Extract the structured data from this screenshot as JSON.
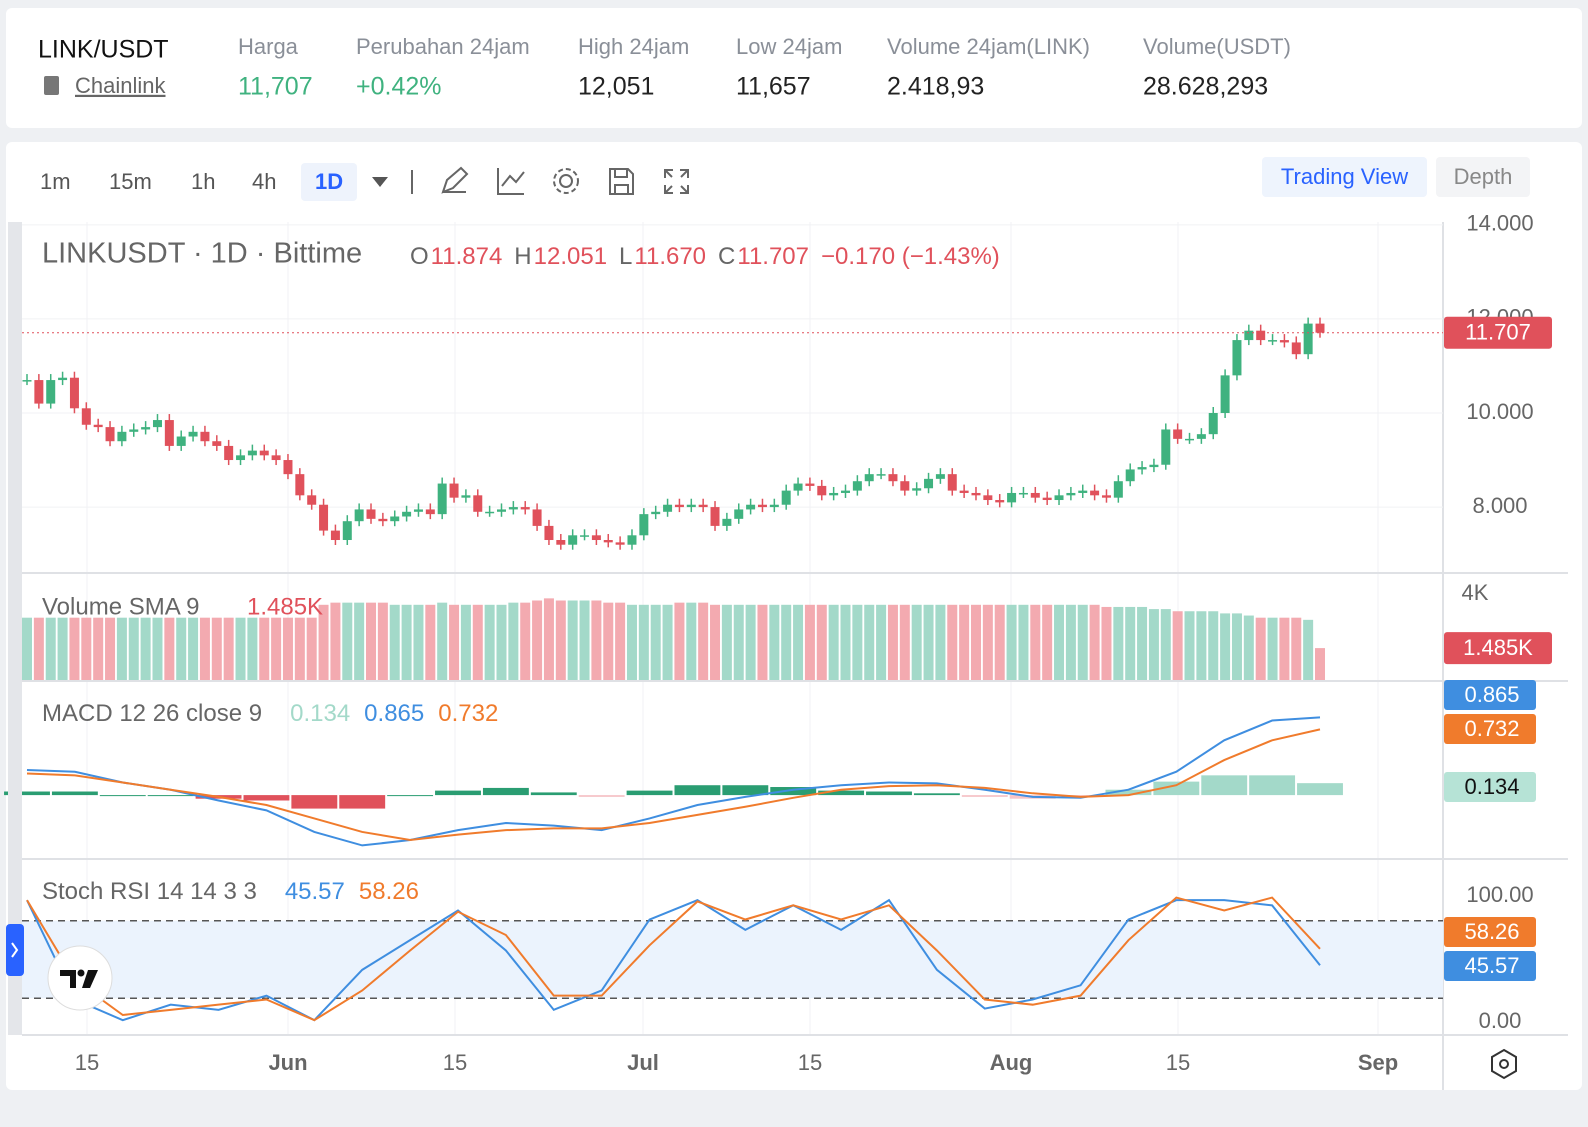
{
  "header": {
    "pair": "LINK/USDT",
    "name": "Chainlink",
    "stats": [
      {
        "label": "Harga",
        "value": "11,707"
      },
      {
        "label": "Perubahan 24jam",
        "value": "+0.42%"
      },
      {
        "label": "High 24jam",
        "value": "12,051"
      },
      {
        "label": "Low 24jam",
        "value": "11,657"
      },
      {
        "label": "Volume 24jam(LINK)",
        "value": "2.418,93"
      },
      {
        "label": "Volume(USDT)",
        "value": "28.628,293"
      }
    ]
  },
  "toolbar": {
    "intervals": [
      "1m",
      "15m",
      "1h",
      "4h",
      "1D"
    ],
    "active": "1D",
    "tabs": [
      "Trading View",
      "Depth"
    ],
    "active_tab": "Trading View"
  },
  "chart_data": {
    "type": "candlestick",
    "legend": {
      "symbol": "LINKUSDT · 1D · Bittime",
      "ohlc": [
        {
          "key": "O",
          "value": "11.874"
        },
        {
          "key": "H",
          "value": "12.051"
        },
        {
          "key": "L",
          "value": "11.670"
        },
        {
          "key": "C",
          "value": "11.707"
        }
      ],
      "change": "−0.170 (−1.43%)"
    },
    "price": {
      "up_color": "#3fb27f",
      "down_color": "#e0515b",
      "ylim": [
        6.62,
        14.06
      ],
      "yticks": [
        {
          "value": 14,
          "label": "14.000"
        },
        {
          "value": 12,
          "label": "12.000"
        },
        {
          "value": 10,
          "label": "10.000"
        },
        {
          "value": 8,
          "label": "8.000"
        }
      ],
      "last": {
        "value": 11.707,
        "label": "11.707"
      },
      "closes": [
        10.7,
        10.2,
        10.7,
        10.75,
        10.1,
        9.75,
        9.7,
        9.4,
        9.6,
        9.65,
        9.7,
        9.85,
        9.3,
        9.5,
        9.6,
        9.4,
        9.3,
        9.0,
        9.1,
        9.2,
        9.1,
        9.0,
        8.7,
        8.25,
        8.05,
        7.5,
        7.3,
        7.7,
        7.95,
        7.75,
        7.7,
        7.8,
        7.9,
        7.95,
        7.85,
        8.5,
        8.2,
        8.25,
        7.9,
        7.9,
        7.95,
        8.0,
        7.95,
        7.6,
        7.3,
        7.2,
        7.4,
        7.4,
        7.3,
        7.25,
        7.2,
        7.4,
        7.85,
        7.9,
        8.05,
        8.0,
        8.05,
        8.0,
        7.6,
        7.75,
        7.95,
        8.05,
        8.0,
        8.05,
        8.35,
        8.5,
        8.45,
        8.25,
        8.3,
        8.35,
        8.55,
        8.7,
        8.7,
        8.55,
        8.35,
        8.4,
        8.6,
        8.7,
        8.35,
        8.3,
        8.25,
        8.15,
        8.1,
        8.3,
        8.3,
        8.2,
        8.15,
        8.25,
        8.3,
        8.35,
        8.25,
        8.2,
        8.55,
        8.8,
        8.85,
        8.9,
        9.65,
        9.45,
        9.45,
        9.55,
        10.0,
        10.8,
        11.55,
        11.75,
        11.55,
        11.55,
        11.5,
        11.25,
        11.9,
        11.707
      ]
    },
    "volume": {
      "title": "Volume SMA 9",
      "ylim": [
        0,
        4.98
      ],
      "yticks": [
        {
          "value": 4,
          "label": "4K"
        }
      ],
      "last": {
        "value": 1.485,
        "label": "1.485K"
      },
      "values": [
        2.9,
        2.9,
        2.9,
        2.9,
        2.9,
        2.9,
        2.9,
        2.9,
        2.9,
        2.9,
        2.9,
        2.9,
        2.9,
        2.9,
        2.9,
        2.9,
        2.9,
        2.9,
        2.9,
        2.9,
        2.9,
        2.9,
        2.9,
        2.9,
        2.9,
        3.5,
        3.6,
        3.6,
        3.6,
        3.6,
        3.6,
        3.5,
        3.5,
        3.5,
        3.5,
        3.6,
        3.5,
        3.5,
        3.5,
        3.5,
        3.5,
        3.6,
        3.6,
        3.7,
        3.8,
        3.7,
        3.7,
        3.7,
        3.7,
        3.6,
        3.6,
        3.5,
        3.5,
        3.5,
        3.5,
        3.6,
        3.6,
        3.6,
        3.5,
        3.5,
        3.5,
        3.5,
        3.5,
        3.5,
        3.5,
        3.5,
        3.5,
        3.5,
        3.5,
        3.5,
        3.5,
        3.5,
        3.5,
        3.5,
        3.5,
        3.5,
        3.5,
        3.5,
        3.5,
        3.5,
        3.5,
        3.5,
        3.5,
        3.5,
        3.5,
        3.5,
        3.5,
        3.5,
        3.5,
        3.5,
        3.5,
        3.4,
        3.4,
        3.4,
        3.4,
        3.3,
        3.3,
        3.2,
        3.2,
        3.2,
        3.2,
        3.1,
        3.1,
        3.0,
        2.9,
        2.9,
        2.9,
        2.9,
        2.8,
        1.485
      ]
    },
    "macd": {
      "title": "MACD 12 26 close 9",
      "ylim": [
        -0.7,
        1.27
      ],
      "hist_label": "0.134",
      "macd_label": "0.865",
      "signal_label": "0.732",
      "macd_color": "#3f8ee0",
      "signal_color": "#f07b2c",
      "macd_values": [
        0.28,
        0.26,
        0.14,
        0.06,
        -0.06,
        -0.17,
        -0.41,
        -0.56,
        -0.5,
        -0.39,
        -0.31,
        -0.34,
        -0.39,
        -0.26,
        -0.11,
        -0.02,
        0.06,
        0.11,
        0.14,
        0.13,
        0.06,
        -0.02,
        -0.03,
        0.06,
        0.26,
        0.61,
        0.83,
        0.865
      ],
      "signal_values": [
        0.24,
        0.22,
        0.14,
        0.06,
        -0.02,
        -0.11,
        -0.26,
        -0.41,
        -0.5,
        -0.44,
        -0.39,
        -0.37,
        -0.37,
        -0.31,
        -0.22,
        -0.13,
        -0.03,
        0.06,
        0.1,
        0.11,
        0.08,
        0.02,
        -0.02,
        0,
        0.11,
        0.39,
        0.61,
        0.732
      ]
    },
    "stoch": {
      "title": "Stoch RSI 14 14 3 3",
      "ylim": [
        -8.5,
        127.9
      ],
      "bands": [
        20,
        80
      ],
      "yticks": [
        {
          "value": 100,
          "label": "100.00"
        },
        {
          "value": 0,
          "label": "0.00"
        }
      ],
      "k_label": "45.57",
      "d_label": "58.26",
      "k_color": "#3f8ee0",
      "d_color": "#f07b2c",
      "k_values": [
        96,
        19,
        3,
        15,
        11,
        22,
        3,
        42,
        65,
        88,
        57,
        11,
        26,
        81,
        96,
        73,
        92,
        73,
        96,
        42,
        12,
        19,
        30,
        81,
        96,
        96,
        92,
        45.57
      ],
      "d_values": [
        96,
        34,
        7,
        11,
        15,
        19,
        3,
        26,
        57,
        87,
        69,
        22,
        22,
        61,
        95,
        81,
        92,
        81,
        92,
        57,
        19,
        15,
        22,
        65,
        98,
        88,
        98,
        58.26
      ]
    },
    "x_labels": [
      "15",
      "Jun",
      "15",
      "Jul",
      "15",
      "Aug",
      "15",
      "Sep"
    ]
  }
}
